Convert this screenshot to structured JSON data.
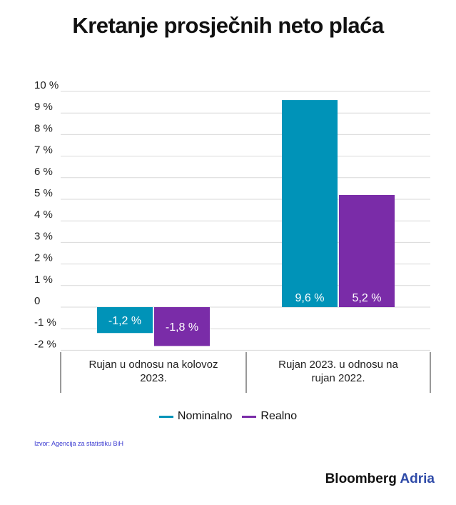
{
  "title": "Kretanje prosječnih neto plaća",
  "colors": {
    "nominal": "#0093b8",
    "real": "#7a2ca8"
  },
  "chart_data": {
    "type": "bar",
    "ylim": [
      -2.5,
      10
    ],
    "yticks": [
      {
        "value": 10,
        "label": "10 %"
      },
      {
        "value": 9,
        "label": "9 %"
      },
      {
        "value": 8,
        "label": "8 %"
      },
      {
        "value": 7,
        "label": "7 %"
      },
      {
        "value": 6,
        "label": "6 %"
      },
      {
        "value": 5,
        "label": "5 %"
      },
      {
        "value": 4,
        "label": "4 %"
      },
      {
        "value": 3,
        "label": "3 %"
      },
      {
        "value": 2,
        "label": "2 %"
      },
      {
        "value": 1,
        "label": "1 %"
      },
      {
        "value": 0,
        "label": "0"
      },
      {
        "value": -1,
        "label": "-1 %"
      },
      {
        "value": -2,
        "label": "-2 %"
      }
    ],
    "categories": [
      [
        "Rujan u odnosu na kolovoz",
        "2023."
      ],
      [
        "Rujan 2023. u odnosu na",
        "rujan 2022."
      ]
    ],
    "series": [
      {
        "name": "Nominalno",
        "values": [
          -1.2,
          9.6
        ],
        "labels": [
          "-1,2 %",
          "9,6 %"
        ]
      },
      {
        "name": "Realno",
        "values": [
          -1.8,
          5.2
        ],
        "labels": [
          "-1,8 %",
          "5,2 %"
        ]
      }
    ],
    "grid": true,
    "legend": "bottom"
  },
  "source": "Izvor: Agencija za statistiku BiH",
  "brand": {
    "name": "Bloomberg",
    "accent": "Adria"
  }
}
